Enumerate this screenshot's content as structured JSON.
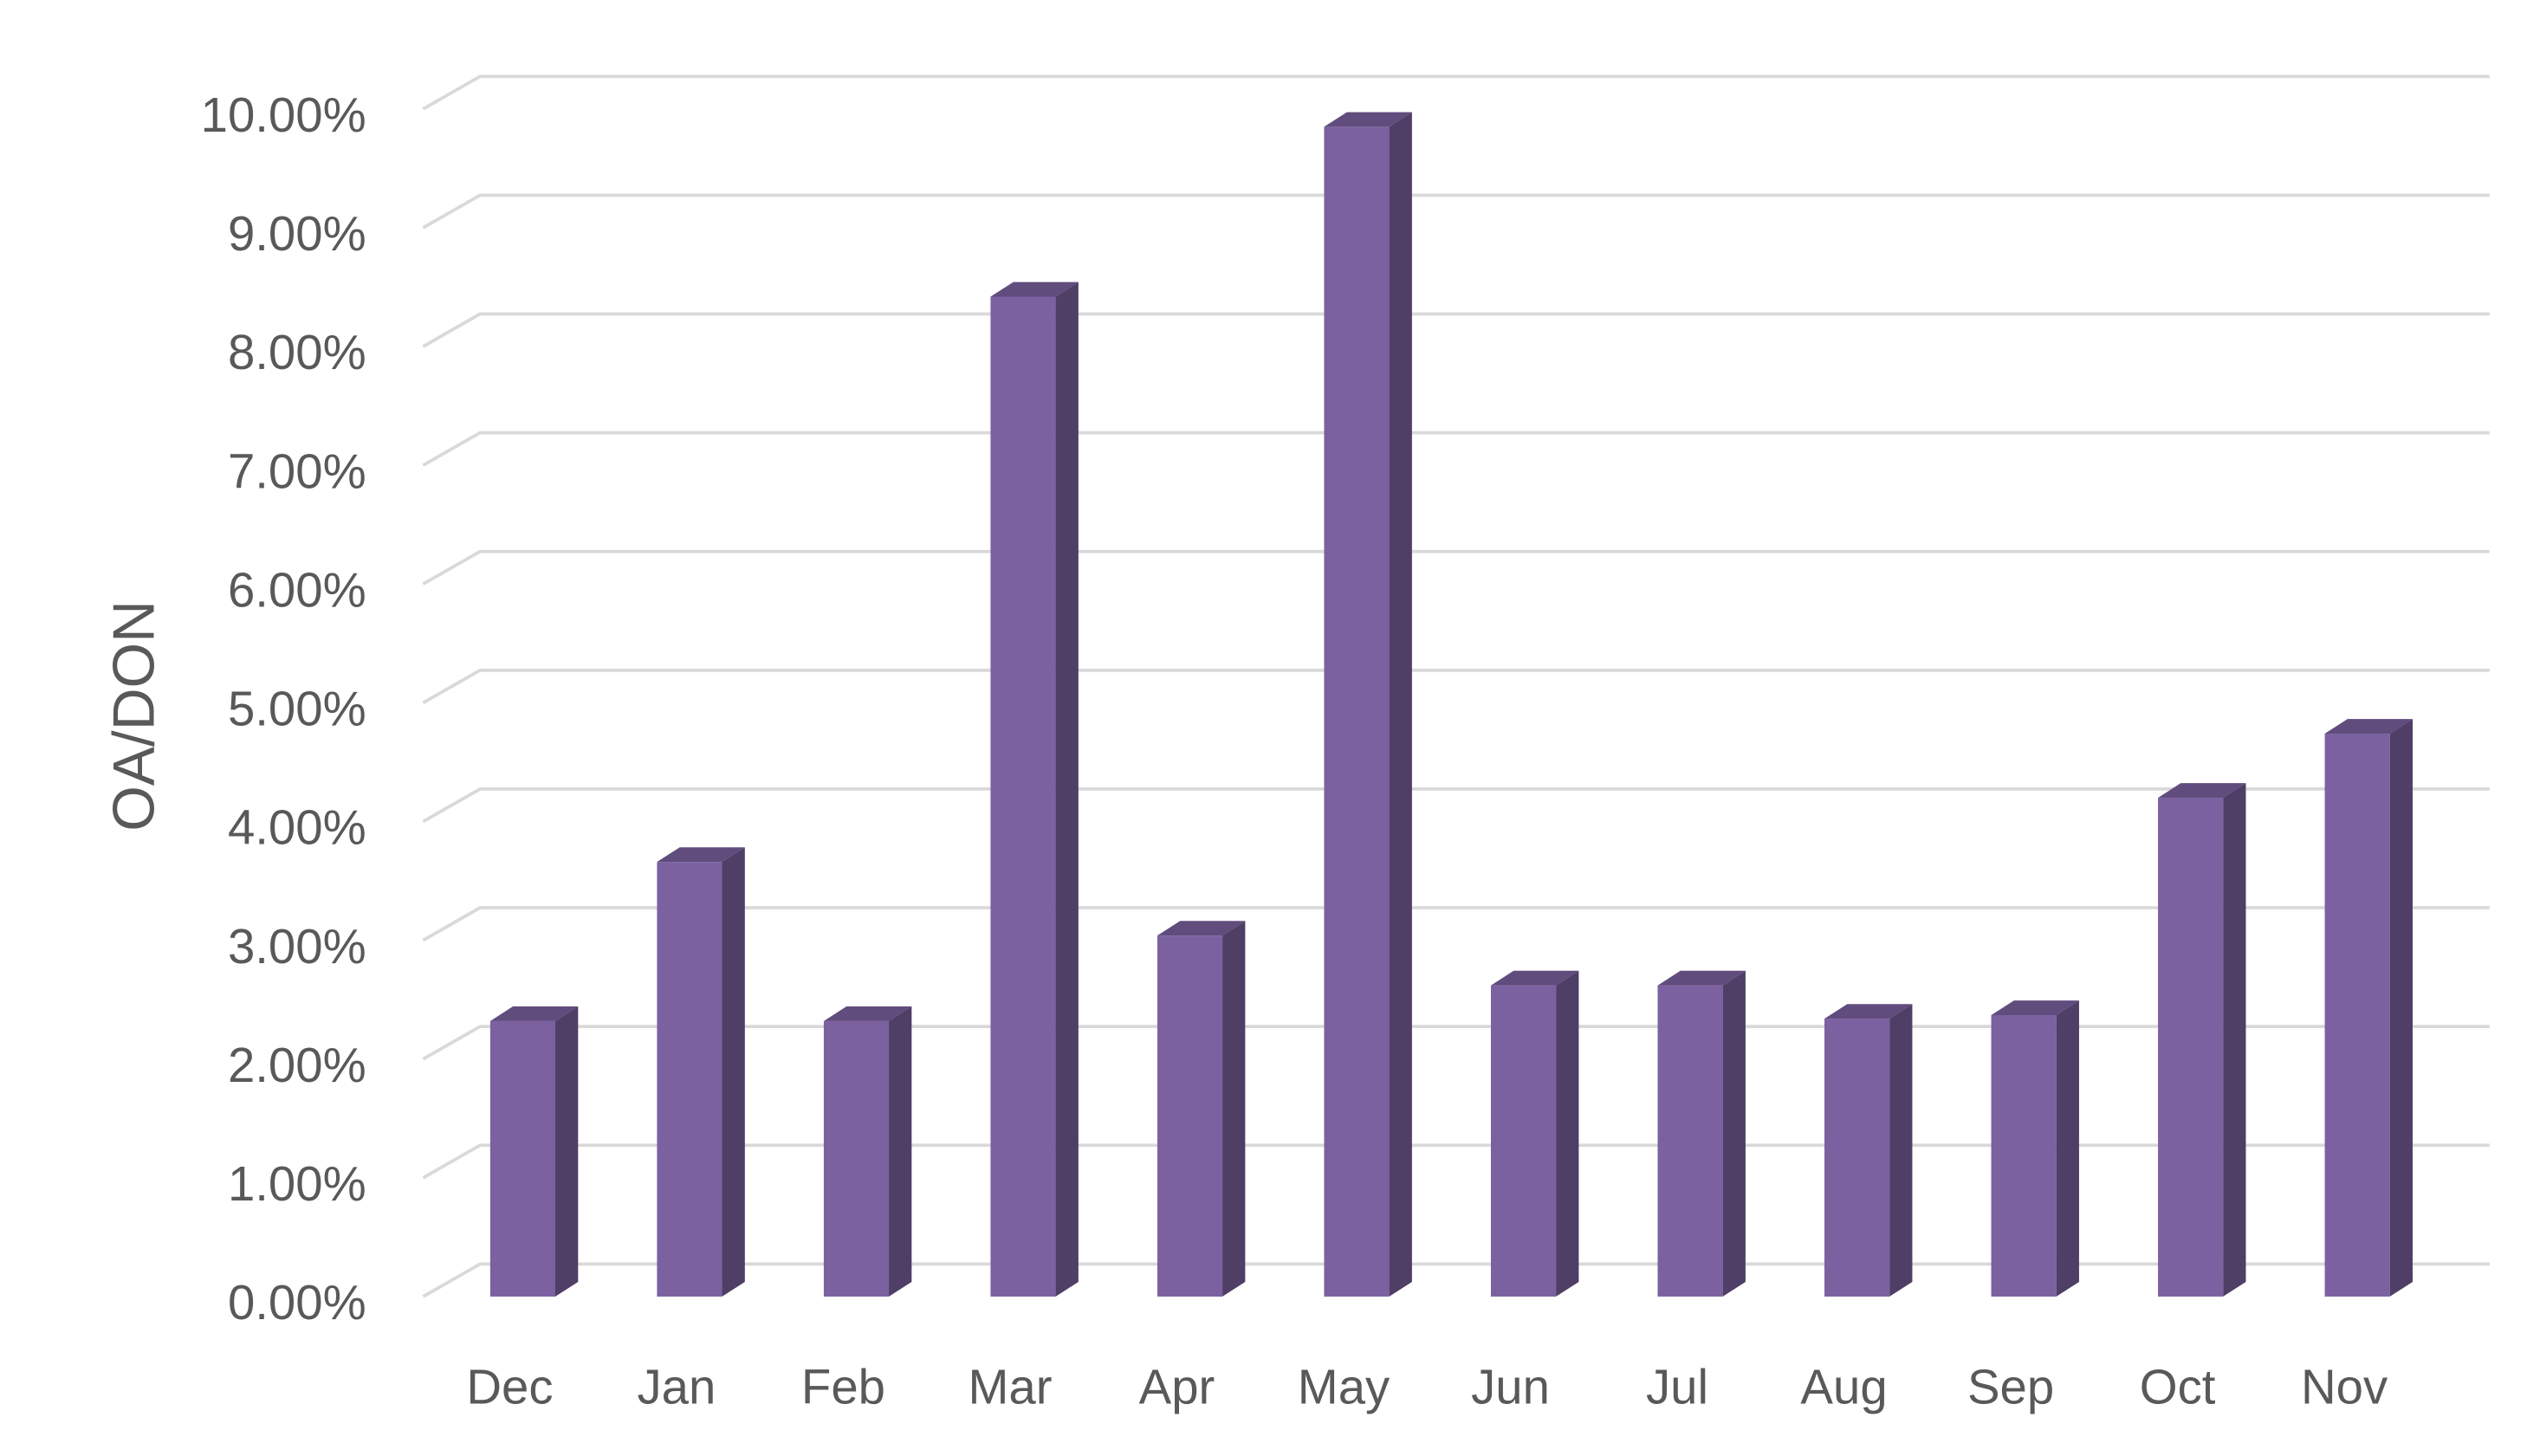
{
  "chart_data": {
    "type": "bar3d",
    "y_label": "OA/DON",
    "categories": [
      "Dec",
      "Jan",
      "Feb",
      "Mar",
      "Apr",
      "May",
      "Jun",
      "Jul",
      "Aug",
      "Sep",
      "Oct",
      "Nov"
    ],
    "values": [
      2.32,
      3.66,
      2.32,
      8.42,
      3.04,
      9.85,
      2.62,
      2.62,
      2.34,
      2.37,
      4.2,
      4.74
    ],
    "color": "#7b61a0",
    "ylim": [
      0,
      10
    ],
    "yticks": [
      {
        "value": 0,
        "label": "0.00%"
      },
      {
        "value": 1,
        "label": "1.00%"
      },
      {
        "value": 2,
        "label": "2.00%"
      },
      {
        "value": 3,
        "label": "3.00%"
      },
      {
        "value": 4,
        "label": "4.00%"
      },
      {
        "value": 5,
        "label": "5.00%"
      },
      {
        "value": 6,
        "label": "6.00%"
      },
      {
        "value": 7,
        "label": "7.00%"
      },
      {
        "value": 8,
        "label": "8.00%"
      },
      {
        "value": 9,
        "label": "9.00%"
      },
      {
        "value": 10,
        "label": "10.00%"
      }
    ],
    "grid": true
  }
}
